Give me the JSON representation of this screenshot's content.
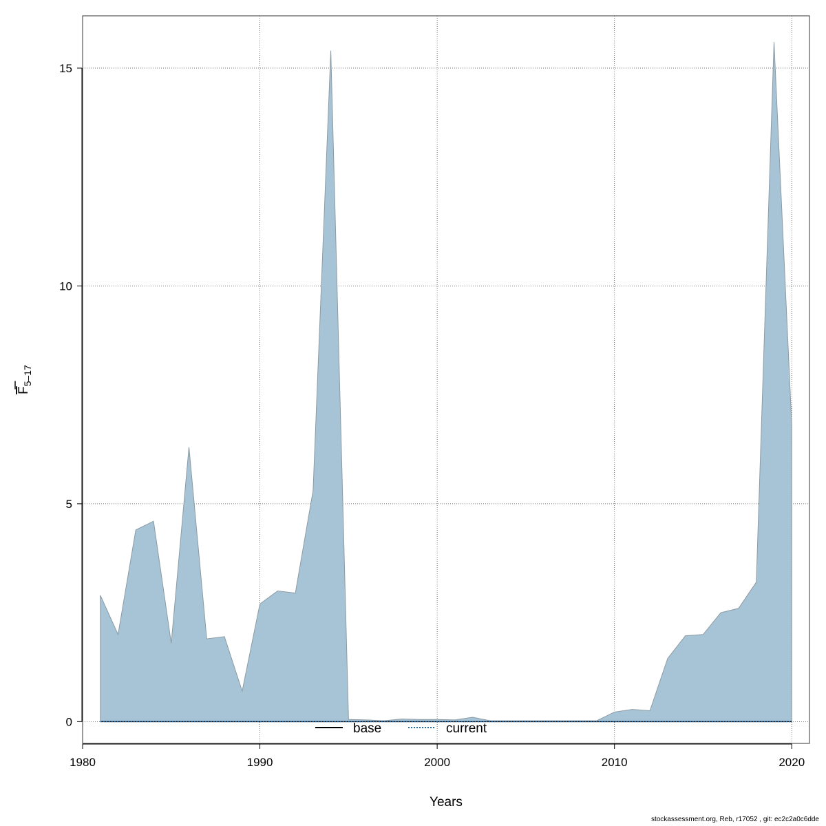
{
  "chart_data": {
    "type": "area",
    "xlabel": "Years",
    "ylabel": {
      "main": "F",
      "subscript": "5–17"
    },
    "xlim": [
      1980,
      2021
    ],
    "ylim": [
      -0.5,
      16.2
    ],
    "x_ticks": [
      1980,
      1990,
      2000,
      2010,
      2020
    ],
    "y_ticks": [
      0,
      5,
      10,
      15
    ],
    "grid": true,
    "legend_position": "bottom",
    "series": [
      {
        "name": "base",
        "style": "area",
        "fill": "#a6c4d6",
        "stroke": "#8c9aa3",
        "x": [
          1981,
          1982,
          1983,
          1984,
          1985,
          1986,
          1987,
          1988,
          1989,
          1990,
          1991,
          1992,
          1993,
          1994,
          1995,
          1996,
          1997,
          1998,
          1999,
          2000,
          2001,
          2002,
          2003,
          2004,
          2005,
          2006,
          2007,
          2008,
          2009,
          2010,
          2011,
          2012,
          2013,
          2014,
          2015,
          2016,
          2017,
          2018,
          2019,
          2020
        ],
        "values": [
          2.9,
          2.0,
          4.4,
          4.6,
          1.8,
          6.3,
          1.9,
          1.95,
          0.7,
          2.7,
          3.0,
          2.95,
          5.3,
          15.4,
          0.05,
          0.04,
          0.02,
          0.06,
          0.05,
          0.05,
          0.04,
          0.1,
          0.02,
          0.02,
          0.02,
          0.02,
          0.02,
          0.02,
          0.02,
          0.22,
          0.28,
          0.25,
          1.45,
          1.97,
          2.0,
          2.5,
          2.6,
          3.2,
          15.6,
          6.8
        ]
      },
      {
        "name": "current",
        "style": "dotted-line",
        "color": "#1f6fb0",
        "x": [
          1981,
          2020
        ],
        "values": [
          0,
          0
        ]
      }
    ],
    "legend": [
      {
        "label": "base",
        "line": "solid",
        "color": "#000000"
      },
      {
        "label": "current",
        "line": "dotted",
        "color": "#1f6fb0"
      }
    ]
  },
  "footer": "stockassessment.org, Reb, r17052 , git: ec2c2a0c6dde"
}
